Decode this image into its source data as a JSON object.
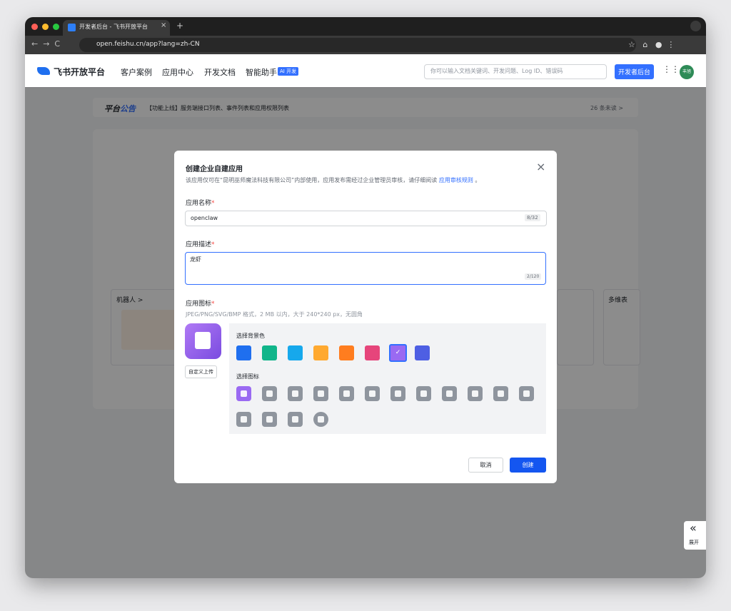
{
  "browser": {
    "tab_title": "开发者后台 - 飞书开放平台",
    "new_tab": "+",
    "url": "open.feishu.cn/app?lang=zh-CN"
  },
  "header": {
    "logo": "飞书开放平台",
    "nav": [
      "客户案例",
      "应用中心",
      "开发文档",
      "智能助手"
    ],
    "ai_badge": "AI 开发",
    "search_placeholder": "你可以输入文档关键词、开发问题、Log ID、错误码",
    "console_button": "开发者后台",
    "avatar": "丰旭"
  },
  "announcement": {
    "label_a": "平台",
    "label_b": "公告",
    "text": "【功能上线】服务端接口列表、事件列表和应用权限列表",
    "unread": "26 条未读 >"
  },
  "cards": {
    "robot": "机器人 >",
    "multi": "多维表"
  },
  "modal": {
    "title": "创建企业自建应用",
    "desc": "该应用仅可在“昆明巫师魔法科技有限公司”内部使用，应用发布需经过企业管理员审核，请仔细阅读",
    "desc_link": "应用审核规则",
    "desc_end": "。",
    "required": "*",
    "name_label": "应用名称",
    "name_value": "openclaw",
    "name_count": "8/32",
    "desc_label": "应用描述",
    "desc_value": "龙虾",
    "desc_count": "2/120",
    "icon_label": "应用图标",
    "icon_hint": "JPEG/PNG/SVG/BMP 格式，2 MB 以内，大于 240*240 px，无圆角",
    "upload": "自定义上传",
    "bg_label": "选择背景色",
    "icon_pick_label": "选择图标",
    "cancel": "取消",
    "create": "创建"
  },
  "side": {
    "expand": "展开"
  }
}
